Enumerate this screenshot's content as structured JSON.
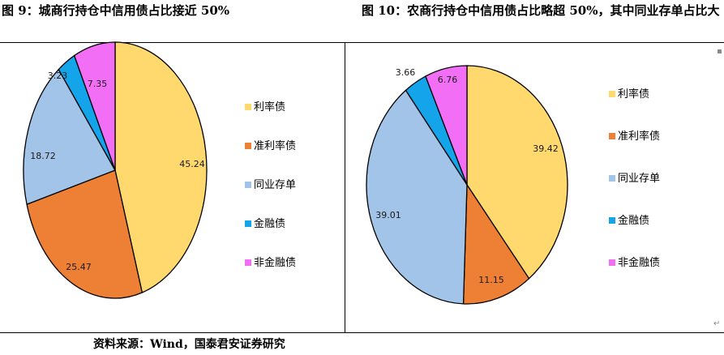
{
  "titles": {
    "left": "图 9：城商行持仓中信用债占比接近 50%",
    "right": "图 10：农商行持仓中信用债占比略超 50%，其中同业存单占比大"
  },
  "source": "资料来源：Wind，国泰君安证券研究",
  "chart_data": [
    {
      "type": "pie",
      "title": "",
      "categories": [
        "利率债",
        "准利率债",
        "同业存单",
        "金融债",
        "非金融债"
      ],
      "values": [
        45.24,
        25.47,
        18.72,
        3.23,
        7.35
      ],
      "colors": [
        "#ffd96e",
        "#ee8035",
        "#a2c4e8",
        "#13a4ea",
        "#f26ef5"
      ],
      "legend_position": "right"
    },
    {
      "type": "pie",
      "title": "",
      "categories": [
        "利率债",
        "准利率债",
        "同业存单",
        "金融债",
        "非金融债"
      ],
      "values": [
        39.42,
        11.15,
        39.01,
        3.66,
        6.76
      ],
      "colors": [
        "#ffd96e",
        "#ee8035",
        "#a2c4e8",
        "#13a4ea",
        "#f26ef5"
      ],
      "legend_position": "right"
    }
  ]
}
